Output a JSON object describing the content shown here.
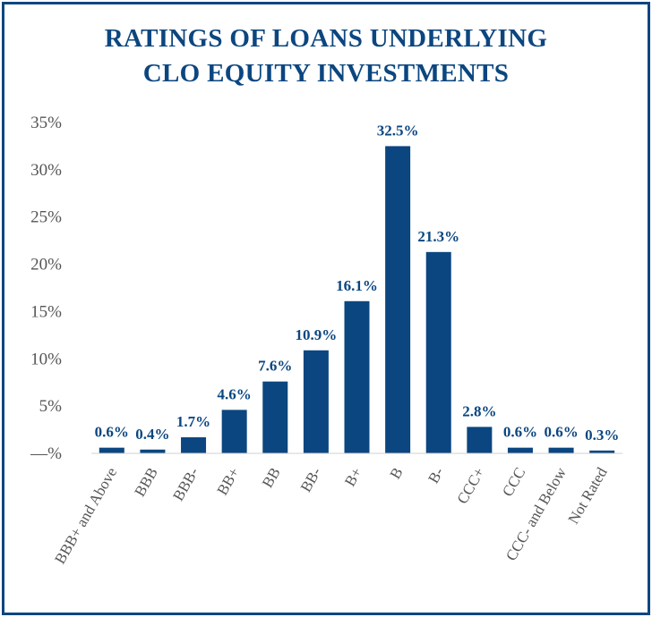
{
  "title_line1": "RATINGS OF LOANS UNDERLYING",
  "title_line2": "CLO EQUITY INVESTMENTS",
  "colors": {
    "accent": "#0b4680",
    "axis_text": "#555555"
  },
  "chart_data": {
    "type": "bar",
    "title": "RATINGS OF LOANS UNDERLYING CLO EQUITY INVESTMENTS",
    "categories": [
      "BBB+ and Above",
      "BBB",
      "BBB-",
      "BB+",
      "BB",
      "BB-",
      "B+",
      "B",
      "B-",
      "CCC+",
      "CCC",
      "CCC- and Below",
      "Not Rated"
    ],
    "values": [
      0.6,
      0.4,
      1.7,
      4.6,
      7.6,
      10.9,
      16.1,
      32.5,
      21.3,
      2.8,
      0.6,
      0.6,
      0.3
    ],
    "data_labels": [
      "0.6%",
      "0.4%",
      "1.7%",
      "4.6%",
      "7.6%",
      "10.9%",
      "16.1%",
      "32.5%",
      "21.3%",
      "2.8%",
      "0.6%",
      "0.6%",
      "0.3%"
    ],
    "yticks": [
      "—%",
      "5%",
      "10%",
      "15%",
      "20%",
      "25%",
      "30%",
      "35%"
    ],
    "ylim": [
      0,
      35
    ],
    "grid": false,
    "legend": "none"
  }
}
